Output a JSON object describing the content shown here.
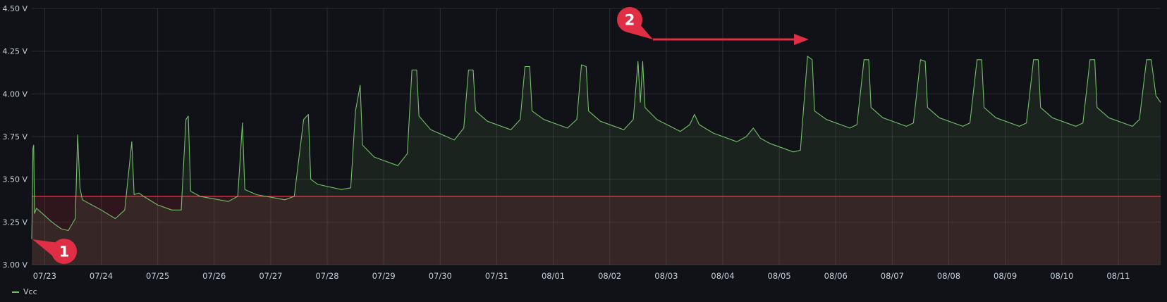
{
  "chart_data": {
    "type": "area",
    "title": "",
    "xlabel": "",
    "ylabel": "",
    "ylim": [
      3.0,
      4.5
    ],
    "y_ticks": [
      "3.00 V",
      "3.25 V",
      "3.50 V",
      "3.75 V",
      "4.00 V",
      "4.25 V",
      "4.50 V"
    ],
    "x_range": [
      "07/22 18:30",
      "08/11 18:00"
    ],
    "x_ticks": [
      "07/23",
      "07/24",
      "07/25",
      "07/26",
      "07/27",
      "07/28",
      "07/29",
      "07/30",
      "07/31",
      "08/01",
      "08/02",
      "08/03",
      "08/04",
      "08/05",
      "08/06",
      "08/07",
      "08/08",
      "08/09",
      "08/10",
      "08/11"
    ],
    "grid": true,
    "legend_position": "bottom-left",
    "threshold": {
      "value": 3.4,
      "color": "#e02f44"
    },
    "series": [
      {
        "name": "Vcc",
        "color": "#73bf69",
        "points": [
          [
            "07/22 18:30",
            3.15
          ],
          [
            "07/22 18:40",
            3.3
          ],
          [
            "07/22 19:00",
            3.68
          ],
          [
            "07/22 19:20",
            3.7
          ],
          [
            "07/22 19:40",
            3.3
          ],
          [
            "07/22 20:30",
            3.33
          ],
          [
            "07/22 23:00",
            3.3
          ],
          [
            "07/23 03:00",
            3.25
          ],
          [
            "07/23 07:00",
            3.21
          ],
          [
            "07/23 10:00",
            3.2
          ],
          [
            "07/23 13:00",
            3.27
          ],
          [
            "07/23 14:00",
            3.76
          ],
          [
            "07/23 15:00",
            3.45
          ],
          [
            "07/23 16:00",
            3.38
          ],
          [
            "07/24 00:00",
            3.32
          ],
          [
            "07/24 06:00",
            3.27
          ],
          [
            "07/24 10:00",
            3.32
          ],
          [
            "07/24 13:00",
            3.72
          ],
          [
            "07/24 14:00",
            3.41
          ],
          [
            "07/24 16:00",
            3.42
          ],
          [
            "07/24 18:00",
            3.4
          ],
          [
            "07/25 00:00",
            3.35
          ],
          [
            "07/25 06:00",
            3.32
          ],
          [
            "07/25 10:00",
            3.32
          ],
          [
            "07/25 12:00",
            3.85
          ],
          [
            "07/25 13:00",
            3.87
          ],
          [
            "07/25 14:00",
            3.43
          ],
          [
            "07/25 18:00",
            3.4
          ],
          [
            "07/26 06:00",
            3.37
          ],
          [
            "07/26 10:00",
            3.4
          ],
          [
            "07/26 12:00",
            3.83
          ],
          [
            "07/26 13:00",
            3.44
          ],
          [
            "07/26 18:00",
            3.41
          ],
          [
            "07/27 06:00",
            3.38
          ],
          [
            "07/27 10:00",
            3.4
          ],
          [
            "07/27 14:00",
            3.85
          ],
          [
            "07/27 16:00",
            3.88
          ],
          [
            "07/27 17:00",
            3.5
          ],
          [
            "07/27 20:00",
            3.47
          ],
          [
            "07/28 06:00",
            3.44
          ],
          [
            "07/28 10:00",
            3.45
          ],
          [
            "07/28 12:00",
            3.9
          ],
          [
            "07/28 14:00",
            4.05
          ],
          [
            "07/28 15:00",
            3.7
          ],
          [
            "07/28 20:00",
            3.63
          ],
          [
            "07/29 06:00",
            3.58
          ],
          [
            "07/29 10:00",
            3.65
          ],
          [
            "07/29 12:00",
            4.14
          ],
          [
            "07/29 14:00",
            4.14
          ],
          [
            "07/29 15:00",
            3.87
          ],
          [
            "07/29 20:00",
            3.79
          ],
          [
            "07/30 06:00",
            3.73
          ],
          [
            "07/30 10:00",
            3.8
          ],
          [
            "07/30 12:00",
            4.14
          ],
          [
            "07/30 14:00",
            4.14
          ],
          [
            "07/30 15:00",
            3.9
          ],
          [
            "07/30 20:00",
            3.84
          ],
          [
            "07/31 06:00",
            3.79
          ],
          [
            "07/31 10:00",
            3.85
          ],
          [
            "07/31 12:00",
            4.16
          ],
          [
            "07/31 14:00",
            4.16
          ],
          [
            "07/31 15:00",
            3.9
          ],
          [
            "07/31 20:00",
            3.85
          ],
          [
            "08/01 06:00",
            3.8
          ],
          [
            "08/01 10:00",
            3.85
          ],
          [
            "08/01 12:00",
            4.17
          ],
          [
            "08/01 14:00",
            4.16
          ],
          [
            "08/01 15:00",
            3.9
          ],
          [
            "08/01 20:00",
            3.84
          ],
          [
            "08/02 06:00",
            3.79
          ],
          [
            "08/02 10:00",
            3.85
          ],
          [
            "08/02 12:00",
            4.19
          ],
          [
            "08/02 13:00",
            3.95
          ],
          [
            "08/02 14:00",
            4.19
          ],
          [
            "08/02 15:00",
            3.92
          ],
          [
            "08/02 20:00",
            3.85
          ],
          [
            "08/03 06:00",
            3.78
          ],
          [
            "08/03 10:00",
            3.82
          ],
          [
            "08/03 12:00",
            3.88
          ],
          [
            "08/03 14:00",
            3.82
          ],
          [
            "08/03 20:00",
            3.77
          ],
          [
            "08/04 06:00",
            3.72
          ],
          [
            "08/04 10:00",
            3.75
          ],
          [
            "08/04 13:00",
            3.8
          ],
          [
            "08/04 16:00",
            3.74
          ],
          [
            "08/04 20:00",
            3.71
          ],
          [
            "08/05 06:00",
            3.66
          ],
          [
            "08/05 09:00",
            3.67
          ],
          [
            "08/05 12:00",
            4.22
          ],
          [
            "08/05 14:00",
            4.2
          ],
          [
            "08/05 15:00",
            3.9
          ],
          [
            "08/05 20:00",
            3.85
          ],
          [
            "08/06 06:00",
            3.8
          ],
          [
            "08/06 09:00",
            3.82
          ],
          [
            "08/06 12:00",
            4.2
          ],
          [
            "08/06 14:00",
            4.2
          ],
          [
            "08/06 15:00",
            3.92
          ],
          [
            "08/06 20:00",
            3.86
          ],
          [
            "08/07 06:00",
            3.81
          ],
          [
            "08/07 09:00",
            3.83
          ],
          [
            "08/07 12:00",
            4.2
          ],
          [
            "08/07 14:00",
            4.19
          ],
          [
            "08/07 15:00",
            3.92
          ],
          [
            "08/07 20:00",
            3.86
          ],
          [
            "08/08 06:00",
            3.81
          ],
          [
            "08/08 09:00",
            3.83
          ],
          [
            "08/08 12:00",
            4.2
          ],
          [
            "08/08 14:00",
            4.2
          ],
          [
            "08/08 15:00",
            3.92
          ],
          [
            "08/08 20:00",
            3.86
          ],
          [
            "08/09 06:00",
            3.81
          ],
          [
            "08/09 09:00",
            3.83
          ],
          [
            "08/09 12:00",
            4.2
          ],
          [
            "08/09 14:00",
            4.2
          ],
          [
            "08/09 15:00",
            3.92
          ],
          [
            "08/09 20:00",
            3.86
          ],
          [
            "08/10 06:00",
            3.81
          ],
          [
            "08/10 09:00",
            3.83
          ],
          [
            "08/10 12:00",
            4.2
          ],
          [
            "08/10 14:00",
            4.2
          ],
          [
            "08/10 15:00",
            3.92
          ],
          [
            "08/10 20:00",
            3.86
          ],
          [
            "08/11 06:00",
            3.81
          ],
          [
            "08/11 09:00",
            3.85
          ],
          [
            "08/11 12:00",
            4.2
          ],
          [
            "08/11 14:00",
            4.2
          ],
          [
            "08/11 16:00",
            3.99
          ],
          [
            "08/11 18:00",
            3.95
          ]
        ]
      }
    ]
  },
  "annotations": [
    {
      "label": "1",
      "color": "#e02f44"
    },
    {
      "label": "2",
      "color": "#e02f44"
    }
  ]
}
